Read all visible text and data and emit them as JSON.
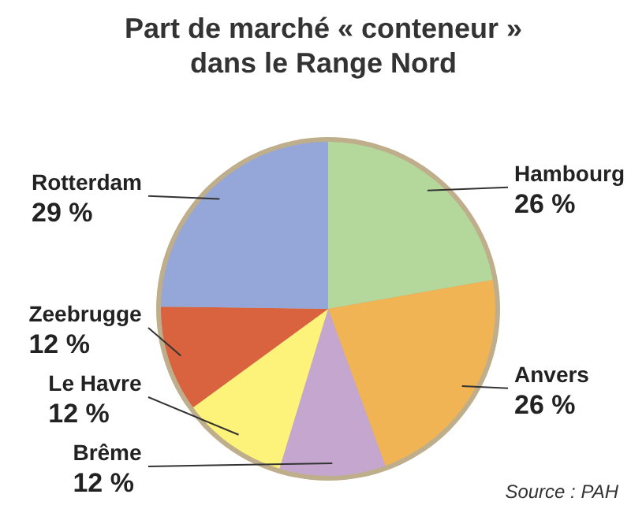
{
  "chart_data": {
    "type": "pie",
    "title": "Part de marché « conteneur » dans le Range Nord",
    "categories": [
      "Hambourg",
      "Anvers",
      "Brême",
      "Le Havre",
      "Zeebrugge",
      "Rotterdam"
    ],
    "values": [
      26,
      26,
      12,
      12,
      12,
      29
    ],
    "value_labels": [
      "26 %",
      "26 %",
      "12 %",
      "12 %",
      "12 %",
      "29 %"
    ],
    "colors": [
      "#b4d79b",
      "#f0b455",
      "#c5a6cf",
      "#fdf27a",
      "#d9623f",
      "#94a7d8"
    ],
    "annotations": [
      "Source : PAH"
    ]
  }
}
